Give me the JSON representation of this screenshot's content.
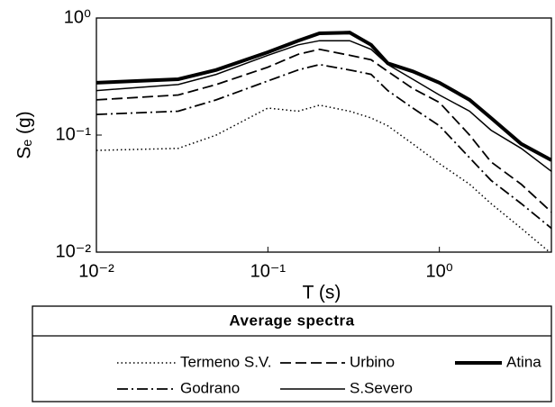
{
  "chart_data": {
    "type": "line",
    "log_x": true,
    "log_y": true,
    "xlabel": "T (s)",
    "ylabel": "Sₑ (g)",
    "xlim": [
      0.01,
      4.5
    ],
    "ylim": [
      0.01,
      1
    ],
    "xticks": [
      {
        "value": 0.01,
        "label": "10⁻²"
      },
      {
        "value": 0.1,
        "label": "10⁻¹"
      },
      {
        "value": 1,
        "label": "10⁰"
      }
    ],
    "yticks": [
      {
        "value": 0.01,
        "label": "10⁻²"
      },
      {
        "value": 0.1,
        "label": "10⁻¹"
      },
      {
        "value": 1,
        "label": "10⁰"
      }
    ],
    "legend_title": "Average spectra",
    "x": [
      0.01,
      0.03,
      0.05,
      0.1,
      0.15,
      0.2,
      0.3,
      0.4,
      0.5,
      0.7,
      1,
      1.5,
      2,
      3,
      4.5
    ],
    "series": [
      {
        "name": "Termeno S.V.",
        "color": "#000000",
        "linestyle": "dotted",
        "linewidth": 1.5,
        "values": [
          0.074,
          0.077,
          0.1,
          0.17,
          0.16,
          0.18,
          0.16,
          0.14,
          0.12,
          0.084,
          0.057,
          0.038,
          0.026,
          0.016,
          0.0097
        ]
      },
      {
        "name": "Urbino",
        "color": "#000000",
        "linestyle": "dashed",
        "linewidth": 1.8,
        "values": [
          0.2,
          0.22,
          0.27,
          0.38,
          0.49,
          0.54,
          0.48,
          0.44,
          0.35,
          0.25,
          0.19,
          0.1,
          0.059,
          0.038,
          0.022
        ]
      },
      {
        "name": "Atina",
        "color": "#000000",
        "linestyle": "solid",
        "linewidth": 4,
        "values": [
          0.28,
          0.3,
          0.36,
          0.51,
          0.64,
          0.74,
          0.75,
          0.59,
          0.41,
          0.35,
          0.28,
          0.2,
          0.14,
          0.084,
          0.061
        ]
      },
      {
        "name": "Godrano",
        "color": "#000000",
        "linestyle": "dashdot",
        "linewidth": 1.8,
        "values": [
          0.15,
          0.16,
          0.2,
          0.29,
          0.36,
          0.4,
          0.36,
          0.33,
          0.24,
          0.17,
          0.12,
          0.064,
          0.041,
          0.026,
          0.016
        ]
      },
      {
        "name": "S.Severo",
        "color": "#000000",
        "linestyle": "solid",
        "linewidth": 1.5,
        "values": [
          0.24,
          0.27,
          0.33,
          0.48,
          0.59,
          0.64,
          0.64,
          0.54,
          0.4,
          0.3,
          0.22,
          0.16,
          0.11,
          0.077,
          0.049
        ]
      }
    ]
  }
}
